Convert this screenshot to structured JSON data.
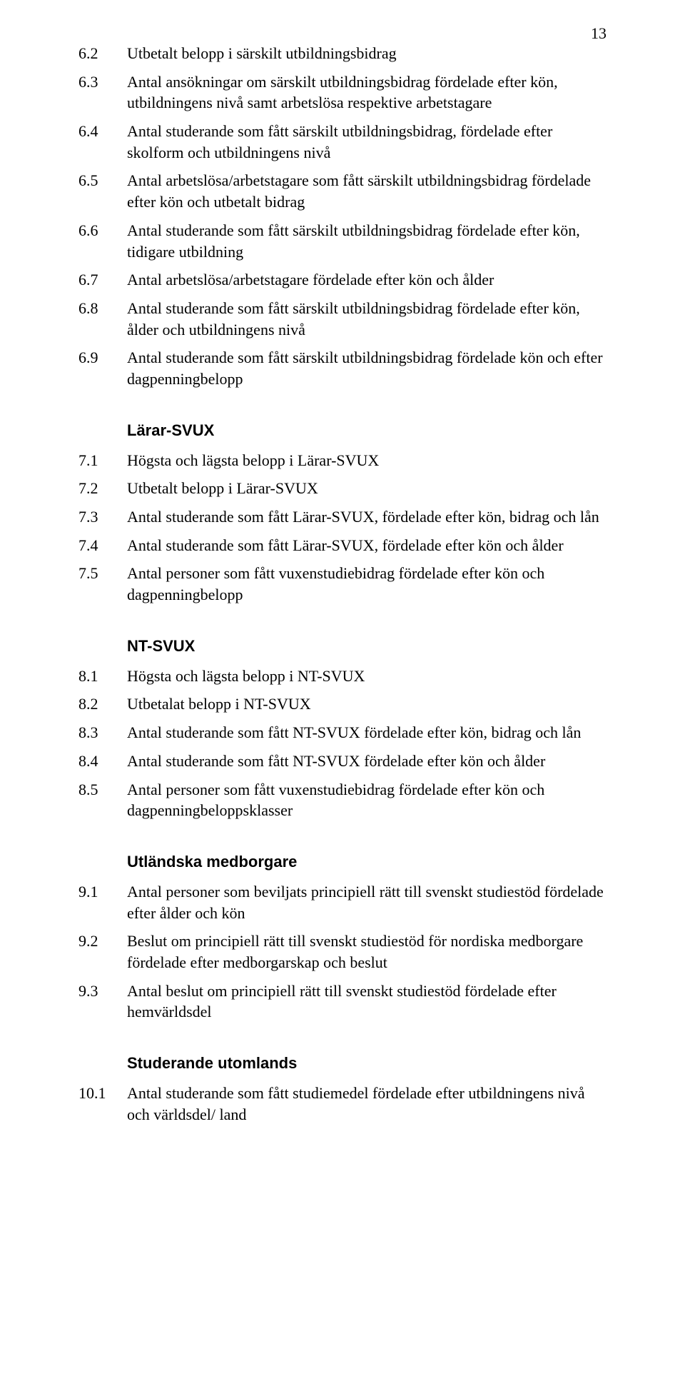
{
  "page_number": "13",
  "section_first": {
    "items": [
      {
        "num": "6.2",
        "text": "Utbetalt belopp i särskilt utbildningsbidrag"
      },
      {
        "num": "6.3",
        "text": "Antal ansökningar om särskilt utbildningsbidrag fördelade efter kön, utbildningens nivå samt arbetslösa respektive arbetstagare"
      },
      {
        "num": "6.4",
        "text": "Antal studerande som fått särskilt utbildningsbidrag, fördelade efter skolform och utbildningens nivå"
      },
      {
        "num": "6.5",
        "text": "Antal arbetslösa/arbetstagare som fått särskilt utbildningsbidrag fördelade efter kön och utbetalt bidrag"
      },
      {
        "num": "6.6",
        "text": "Antal studerande som fått särskilt utbildningsbidrag fördelade efter kön, tidigare utbildning"
      },
      {
        "num": "6.7",
        "text": "Antal arbetslösa/arbetstagare fördelade efter kön och ålder"
      },
      {
        "num": "6.8",
        "text": "Antal studerande som fått särskilt utbildningsbidrag fördelade efter kön, ålder och utbildningens nivå"
      },
      {
        "num": "6.9",
        "text": "Antal studerande som fått särskilt utbildningsbidrag fördelade kön och efter dagpenningbelopp"
      }
    ]
  },
  "sections": [
    {
      "title": "Lärar-SVUX",
      "items": [
        {
          "num": "7.1",
          "text": "Högsta och lägsta belopp i Lärar-SVUX"
        },
        {
          "num": "7.2",
          "text": "Utbetalt belopp i Lärar-SVUX"
        },
        {
          "num": "7.3",
          "text": "Antal studerande som fått Lärar-SVUX, fördelade efter kön, bidrag och lån"
        },
        {
          "num": "7.4",
          "text": "Antal studerande som fått Lärar-SVUX, fördelade efter kön och ålder"
        },
        {
          "num": "7.5",
          "text": "Antal personer som fått vuxenstudiebidrag fördelade efter kön och dagpenningbelopp"
        }
      ]
    },
    {
      "title": "NT-SVUX",
      "items": [
        {
          "num": "8.1",
          "text": "Högsta och lägsta belopp i NT-SVUX"
        },
        {
          "num": "8.2",
          "text": "Utbetalat belopp i NT-SVUX"
        },
        {
          "num": "8.3",
          "text": "Antal studerande som fått NT-SVUX fördelade efter kön, bidrag och lån"
        },
        {
          "num": "8.4",
          "text": "Antal studerande som fått NT-SVUX fördelade efter kön och ålder"
        },
        {
          "num": "8.5",
          "text": "Antal personer som fått vuxenstudiebidrag fördelade efter kön och dagpenningbeloppsklasser"
        }
      ]
    },
    {
      "title": "Utländska medborgare",
      "items": [
        {
          "num": "9.1",
          "text": "Antal personer som beviljats principiell rätt till svenskt studiestöd fördelade efter ålder och kön"
        },
        {
          "num": "9.2",
          "text": "Beslut om principiell rätt till svenskt studiestöd för nordiska medborgare fördelade efter medborgarskap och beslut"
        },
        {
          "num": "9.3",
          "text": "Antal beslut om principiell rätt till svenskt studiestöd fördelade efter hemvärldsdel"
        }
      ]
    },
    {
      "title": "Studerande utomlands",
      "items": [
        {
          "num": "10.1",
          "text": "Antal studerande som fått studiemedel fördelade efter utbildningens nivå och världsdel/ land"
        }
      ]
    }
  ]
}
